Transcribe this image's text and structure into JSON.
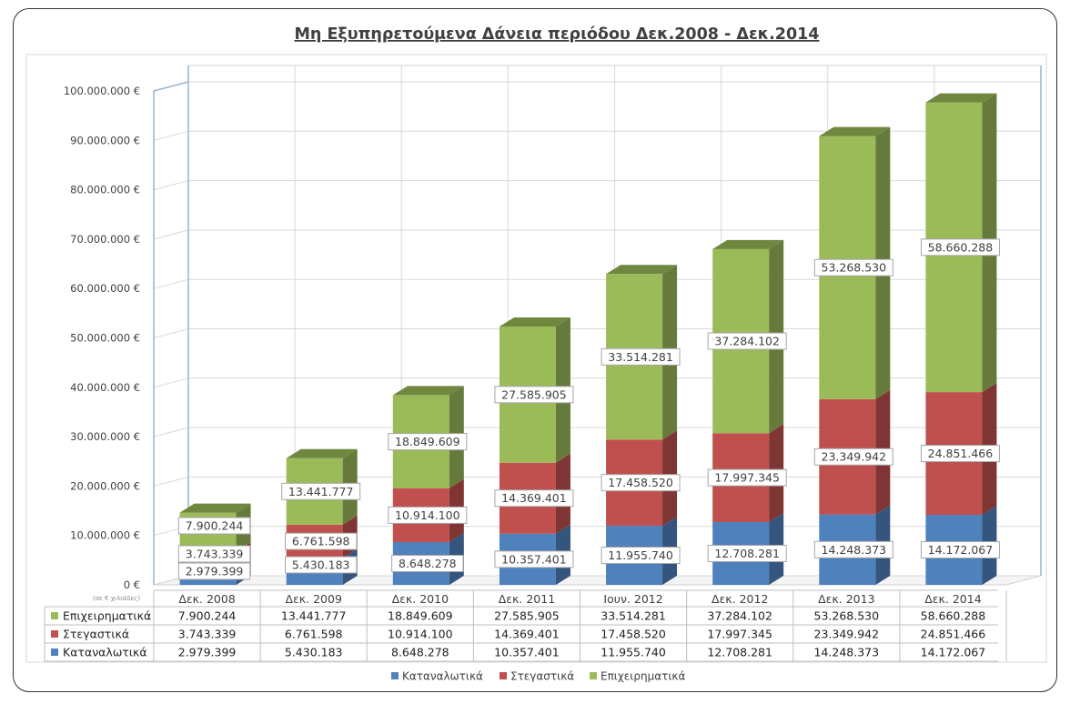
{
  "chart_data": {
    "type": "bar",
    "stacked": true,
    "title": "Μη Εξυπηρετούμενα Δάνεια  περιόδου Δεκ.2008 - Δεκ.2014",
    "y_unit_note": "(σε € χιλιάδες)",
    "ylim": [
      0,
      100000000
    ],
    "y_ticks": [
      "0 €",
      "10.000.000 €",
      "20.000.000 €",
      "30.000.000 €",
      "40.000.000 €",
      "50.000.000 €",
      "60.000.000 €",
      "70.000.000 €",
      "80.000.000 €",
      "90.000.000 €",
      "100.000.000 €"
    ],
    "categories": [
      "Δεκ. 2008",
      "Δεκ. 2009",
      "Δεκ. 2010",
      "Δεκ. 2011",
      "Ιουν. 2012",
      "Δεκ. 2012",
      "Δεκ. 2013",
      "Δεκ. 2014"
    ],
    "series": [
      {
        "name": "Καταναλωτικά",
        "color": "#4f81bd",
        "values": [
          2979399,
          5430183,
          8648278,
          10357401,
          11955740,
          12708281,
          14248373,
          14172067
        ],
        "labels": [
          "2.979.399",
          "5.430.183",
          "8.648.278",
          "10.357.401",
          "11.955.740",
          "12.708.281",
          "14.248.373",
          "14.172.067"
        ]
      },
      {
        "name": "Στεγαστικά",
        "color": "#c0504d",
        "values": [
          3743339,
          6761598,
          10914100,
          14369401,
          17458520,
          17997345,
          23349942,
          24851466
        ],
        "labels": [
          "3.743.339",
          "6.761.598",
          "10.914.100",
          "14.369.401",
          "17.458.520",
          "17.997.345",
          "23.349.942",
          "24.851.466"
        ]
      },
      {
        "name": "Επιχειρηματικά",
        "color": "#9bbb59",
        "values": [
          7900244,
          13441777,
          18849609,
          27585905,
          33514281,
          37284102,
          53268530,
          58660288
        ],
        "labels": [
          "7.900.244",
          "13.441.777",
          "18.849.609",
          "27.585.905",
          "33.514.281",
          "37.284.102",
          "53.268.530",
          "58.660.288"
        ]
      }
    ],
    "table_row_order": [
      "Επιχειρηματικά",
      "Στεγαστικά",
      "Καταναλωτικά"
    ],
    "legend": [
      "Καταναλωτικά",
      "Στεγαστικά",
      "Επιχειρηματικά"
    ],
    "legend_position": "bottom"
  }
}
